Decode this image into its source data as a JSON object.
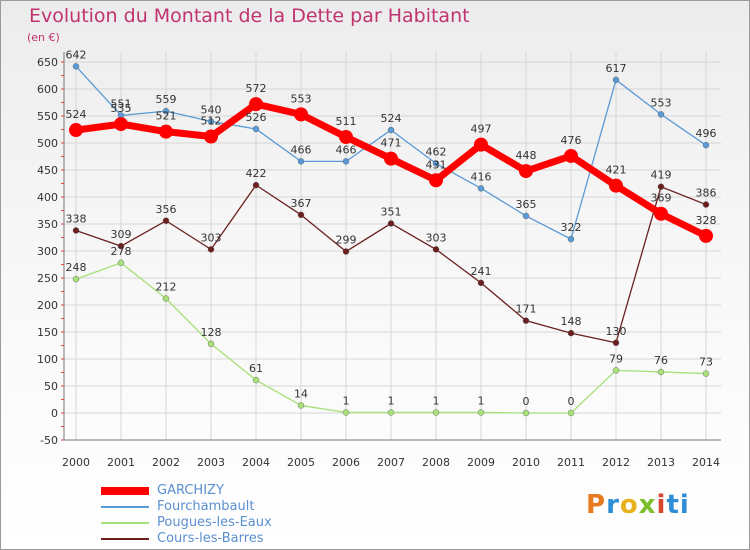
{
  "header": {
    "title": "Evolution du Montant de la Dette par Habitant",
    "unit": "(en €)"
  },
  "logo": {
    "letters": [
      "P",
      "r",
      "o",
      "x",
      "i",
      "ti"
    ]
  },
  "chart_data": {
    "type": "line",
    "x": [
      "2000",
      "2001",
      "2002",
      "2003",
      "2004",
      "2005",
      "2006",
      "2007",
      "2008",
      "2009",
      "2010",
      "2011",
      "2012",
      "2013",
      "2014"
    ],
    "ylim": [
      -50,
      650
    ],
    "yticks": [
      -50,
      0,
      50,
      100,
      150,
      200,
      250,
      300,
      350,
      400,
      450,
      500,
      550,
      600,
      650
    ],
    "grid": true,
    "legend_position": "bottom-left",
    "series": [
      {
        "name": "GARCHIZY",
        "color": "#ff0000",
        "values": [
          524,
          535,
          521,
          512,
          572,
          553,
          511,
          471,
          431,
          497,
          448,
          476,
          421,
          369,
          328
        ]
      },
      {
        "name": "Fourchambault",
        "color": "#5a9ad6",
        "values": [
          642,
          551,
          559,
          540,
          526,
          466,
          466,
          524,
          462,
          416,
          365,
          322,
          617,
          553,
          496
        ]
      },
      {
        "name": "Pougues-les-Eaux",
        "color": "#a8e07a",
        "values": [
          248,
          278,
          212,
          128,
          61,
          14,
          1,
          1,
          1,
          1,
          0,
          0,
          79,
          76,
          73
        ]
      },
      {
        "name": "Cours-les-Barres",
        "color": "#6b1f1f",
        "values": [
          338,
          309,
          356,
          303,
          422,
          367,
          299,
          351,
          303,
          241,
          171,
          148,
          130,
          419,
          386
        ]
      }
    ]
  }
}
